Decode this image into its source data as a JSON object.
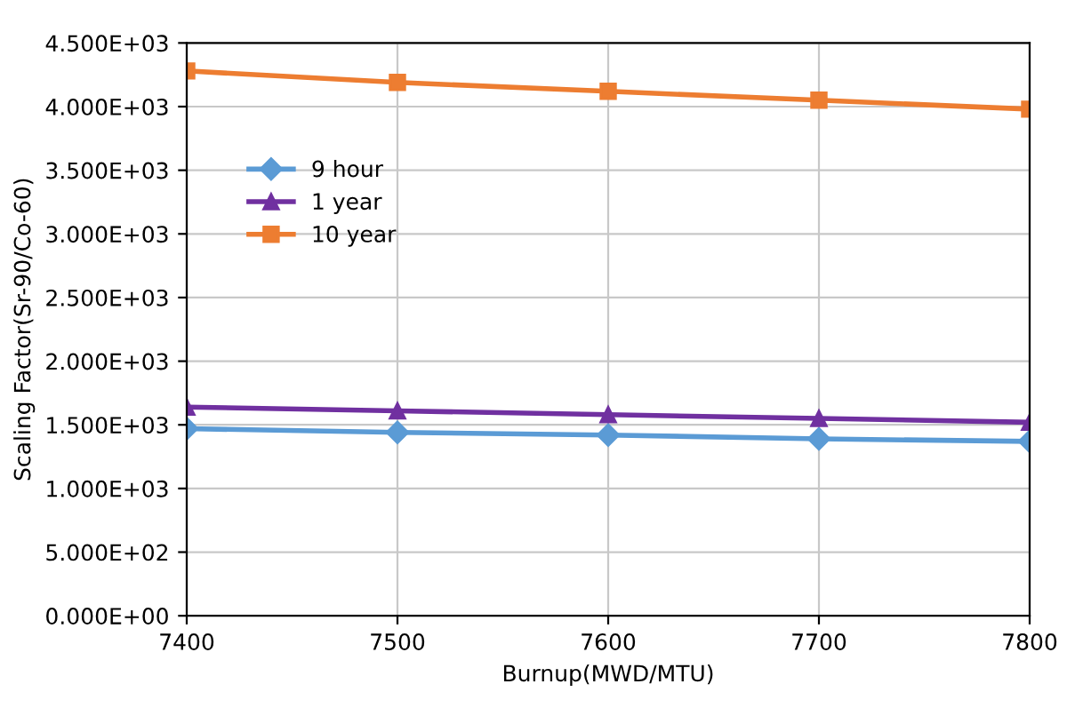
{
  "chart_data": {
    "type": "line",
    "x": [
      7400,
      7500,
      7600,
      7700,
      7800
    ],
    "xlabel": "Burnup(MWD/MTU)",
    "ylabel": "Scaling Factor(Sr-90/Co-60)",
    "xlim": [
      7400,
      7800
    ],
    "xticks": [
      7400,
      7500,
      7600,
      7700,
      7800
    ],
    "ylim": [
      0,
      4500
    ],
    "yticks": [
      {
        "value": 0,
        "label": "0.000E+00"
      },
      {
        "value": 500,
        "label": "5.000E+02"
      },
      {
        "value": 1000,
        "label": "1.000E+03"
      },
      {
        "value": 1500,
        "label": "1.500E+03"
      },
      {
        "value": 2000,
        "label": "2.000E+03"
      },
      {
        "value": 2500,
        "label": "2.500E+03"
      },
      {
        "value": 3000,
        "label": "3.000E+03"
      },
      {
        "value": 3500,
        "label": "3.500E+03"
      },
      {
        "value": 4000,
        "label": "4.000E+03"
      },
      {
        "value": 4500,
        "label": "4.500E+03"
      }
    ],
    "grid": true,
    "legend": "left",
    "series": [
      {
        "name": "9 hour",
        "color": "#5b9bd5",
        "marker": "diamond",
        "values": [
          1470,
          1440,
          1420,
          1390,
          1370
        ]
      },
      {
        "name": "1 year",
        "color": "#7030a0",
        "marker": "triangle",
        "values": [
          1640,
          1610,
          1580,
          1550,
          1520
        ]
      },
      {
        "name": "10 year",
        "color": "#ed7d31",
        "marker": "square",
        "values": [
          4280,
          4190,
          4120,
          4050,
          3980
        ]
      }
    ]
  }
}
